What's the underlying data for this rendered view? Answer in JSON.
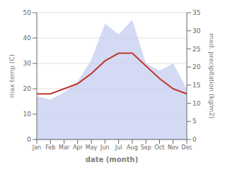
{
  "chart_data": {
    "type": "line",
    "xlabel": "date (month)",
    "ylabel": "max temp (C)",
    "y2label": "med. precipitation (kg/m2)",
    "categories": [
      "Jan",
      "Feb",
      "Mar",
      "Apr",
      "May",
      "Jun",
      "Jul",
      "Aug",
      "Sep",
      "Oct",
      "Nov",
      "Dec"
    ],
    "series": [
      {
        "type": "area",
        "axis": "y2",
        "color": "#c5cdf0",
        "values": [
          12,
          11,
          13,
          16,
          22,
          32,
          29,
          33,
          21,
          19,
          21,
          14
        ]
      },
      {
        "type": "line",
        "color": "#c0392b",
        "values": [
          18,
          18,
          20,
          22,
          26,
          31,
          34,
          34,
          29,
          24,
          20,
          18
        ]
      }
    ],
    "ylim": [
      0,
      50
    ],
    "yticks": [
      0,
      10,
      20,
      30,
      40,
      50
    ],
    "y2lim": [
      0,
      35
    ],
    "y2ticks": [
      0,
      5,
      10,
      15,
      20,
      25,
      30,
      35
    ],
    "grid": true
  }
}
